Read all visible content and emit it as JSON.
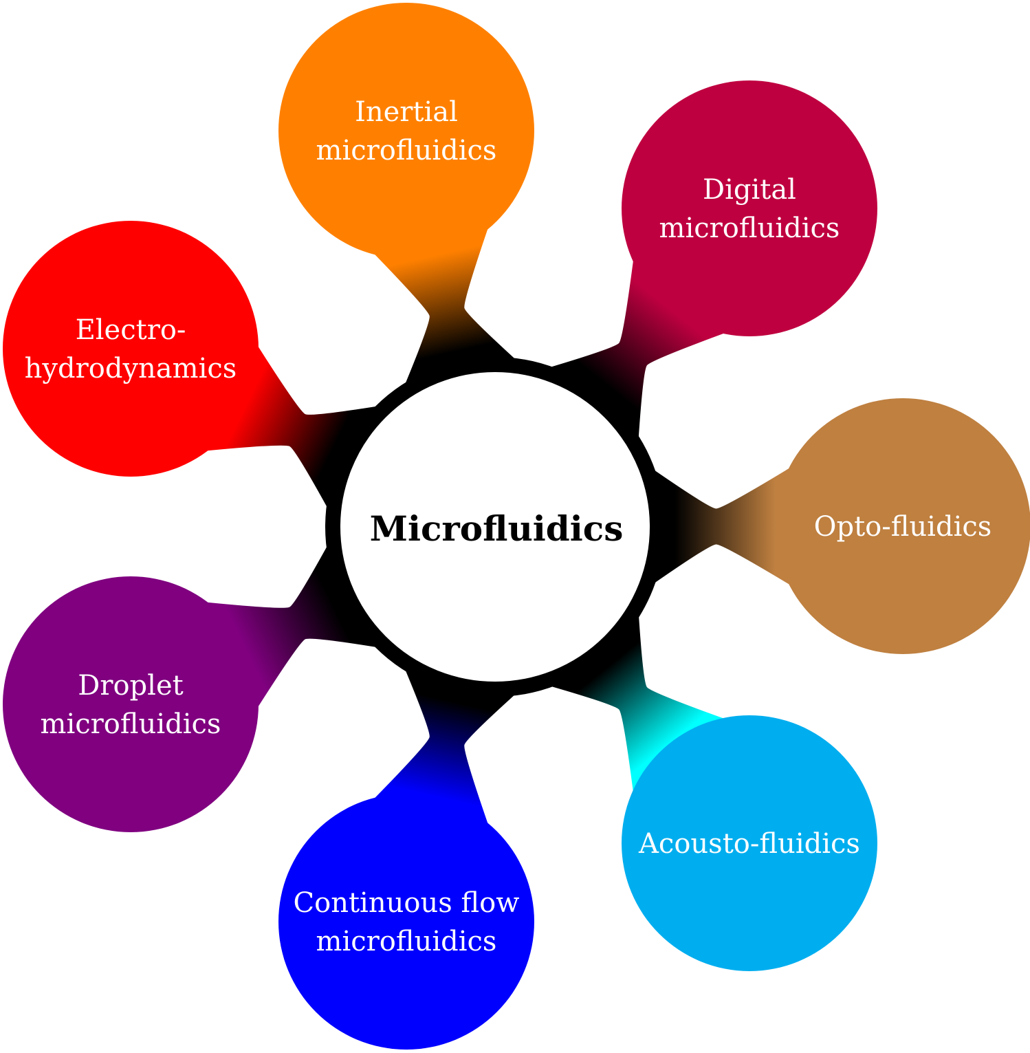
{
  "center": {
    "label": "Microfluidics",
    "fill_color": "#ffffff",
    "ring_color": "#000000"
  },
  "nodes": [
    {
      "id": "inertial",
      "lines": [
        "Inertial",
        "microfluidics"
      ],
      "color": "#ff8000"
    },
    {
      "id": "digital",
      "lines": [
        "Digital",
        "microfluidics"
      ],
      "color": "#bf0040"
    },
    {
      "id": "opto",
      "lines": [
        "Opto-fluidics"
      ],
      "color": "#bf8040"
    },
    {
      "id": "acousto",
      "lines": [
        "Acousto-fluidics"
      ],
      "color": "#00aeef",
      "connector_color": "#00ffff"
    },
    {
      "id": "continuous",
      "lines": [
        "Continuous flow",
        "microfluidics"
      ],
      "color": "#0000ff"
    },
    {
      "id": "droplet",
      "lines": [
        "Droplet",
        "microfluidics"
      ],
      "color": "#800080"
    },
    {
      "id": "electro",
      "lines": [
        "Electro-",
        "hydrodynamics"
      ],
      "color": "#ff0000"
    }
  ]
}
